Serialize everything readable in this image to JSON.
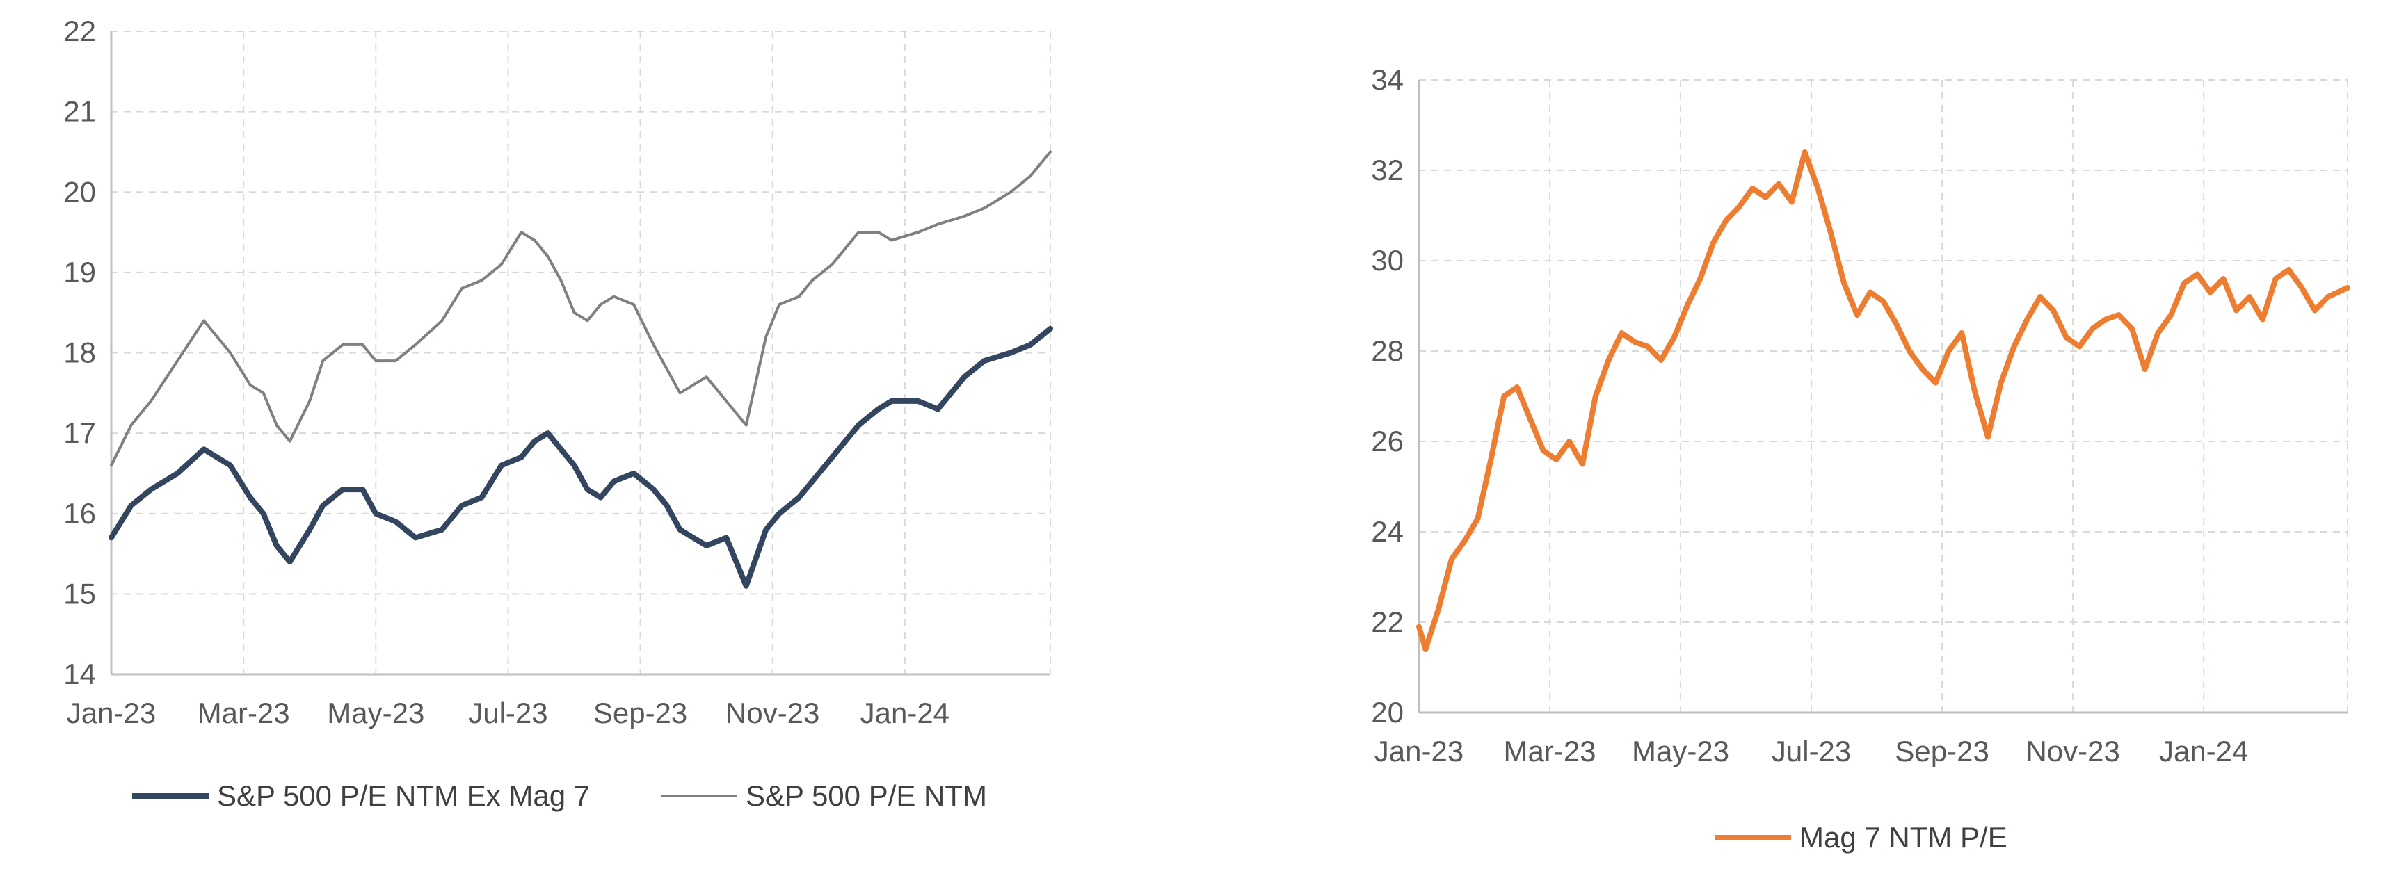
{
  "chart_data": [
    {
      "type": "line",
      "title": "",
      "xlabel": "",
      "ylabel": "",
      "ylim": [
        14,
        22
      ],
      "yticks": [
        "22",
        "21",
        "20",
        "19",
        "18",
        "17",
        "16",
        "15",
        "14"
      ],
      "xticks": [
        "Jan-23",
        "Mar-23",
        "May-23",
        "Jul-23",
        "Sep-23",
        "Nov-23",
        "Jan-24"
      ],
      "x_range_months": [
        0,
        14.2
      ],
      "grid": true,
      "legend_position": "bottom",
      "series": [
        {
          "name": "S&P 500 P/E NTM Ex Mag 7",
          "color": "#34465f",
          "x": [
            0,
            0.3,
            0.6,
            1.0,
            1.4,
            1.8,
            2.1,
            2.3,
            2.5,
            2.7,
            3.0,
            3.2,
            3.5,
            3.8,
            4.0,
            4.3,
            4.6,
            5.0,
            5.3,
            5.6,
            5.9,
            6.2,
            6.4,
            6.6,
            6.8,
            7.0,
            7.2,
            7.4,
            7.6,
            7.9,
            8.2,
            8.4,
            8.6,
            9.0,
            9.3,
            9.6,
            9.9,
            10.1,
            10.4,
            10.6,
            10.9,
            11.3,
            11.6,
            11.8,
            12.2,
            12.5,
            12.9,
            13.2,
            13.6,
            13.9,
            14.2
          ],
          "values": [
            15.7,
            16.1,
            16.3,
            16.5,
            16.8,
            16.6,
            16.2,
            16.0,
            15.6,
            15.4,
            15.8,
            16.1,
            16.3,
            16.3,
            16.0,
            15.9,
            15.7,
            15.8,
            16.1,
            16.2,
            16.6,
            16.7,
            16.9,
            17.0,
            16.8,
            16.6,
            16.3,
            16.2,
            16.4,
            16.5,
            16.3,
            16.1,
            15.8,
            15.6,
            15.7,
            15.1,
            15.8,
            16.0,
            16.2,
            16.4,
            16.7,
            17.1,
            17.3,
            17.4,
            17.4,
            17.3,
            17.7,
            17.9,
            18.0,
            18.1,
            18.3
          ]
        },
        {
          "name": "S&P 500 P/E NTM",
          "color": "#808080",
          "x": [
            0,
            0.3,
            0.6,
            1.0,
            1.4,
            1.8,
            2.1,
            2.3,
            2.5,
            2.7,
            3.0,
            3.2,
            3.5,
            3.8,
            4.0,
            4.3,
            4.6,
            5.0,
            5.3,
            5.6,
            5.9,
            6.2,
            6.4,
            6.6,
            6.8,
            7.0,
            7.2,
            7.4,
            7.6,
            7.9,
            8.2,
            8.4,
            8.6,
            9.0,
            9.3,
            9.6,
            9.9,
            10.1,
            10.4,
            10.6,
            10.9,
            11.3,
            11.6,
            11.8,
            12.2,
            12.5,
            12.9,
            13.2,
            13.6,
            13.9,
            14.2
          ],
          "values": [
            16.6,
            17.1,
            17.4,
            17.9,
            18.4,
            18.0,
            17.6,
            17.5,
            17.1,
            16.9,
            17.4,
            17.9,
            18.1,
            18.1,
            17.9,
            17.9,
            18.1,
            18.4,
            18.8,
            18.9,
            19.1,
            19.5,
            19.4,
            19.2,
            18.9,
            18.5,
            18.4,
            18.6,
            18.7,
            18.6,
            18.1,
            17.8,
            17.5,
            17.7,
            17.4,
            17.1,
            18.2,
            18.6,
            18.7,
            18.9,
            19.1,
            19.5,
            19.5,
            19.4,
            19.5,
            19.6,
            19.7,
            19.8,
            20.0,
            20.2,
            20.5
          ]
        }
      ]
    },
    {
      "type": "line",
      "title": "",
      "xlabel": "",
      "ylabel": "",
      "ylim": [
        20,
        34
      ],
      "yticks": [
        "34",
        "32",
        "30",
        "28",
        "26",
        "24",
        "22",
        "20"
      ],
      "xticks": [
        "Jan-23",
        "Mar-23",
        "May-23",
        "Jul-23",
        "Sep-23",
        "Nov-23",
        "Jan-24"
      ],
      "x_range_months": [
        0,
        14.2
      ],
      "grid": true,
      "legend_position": "bottom",
      "series": [
        {
          "name": "Mag 7 NTM P/E",
          "color": "#ed7d31",
          "x": [
            0,
            0.1,
            0.3,
            0.5,
            0.7,
            0.9,
            1.1,
            1.3,
            1.5,
            1.7,
            1.9,
            2.1,
            2.3,
            2.5,
            2.7,
            2.9,
            3.1,
            3.3,
            3.5,
            3.7,
            3.9,
            4.1,
            4.3,
            4.5,
            4.7,
            4.9,
            5.1,
            5.3,
            5.5,
            5.7,
            5.9,
            6.1,
            6.3,
            6.5,
            6.7,
            6.9,
            7.1,
            7.3,
            7.5,
            7.7,
            7.9,
            8.1,
            8.3,
            8.5,
            8.7,
            8.9,
            9.1,
            9.3,
            9.5,
            9.7,
            9.9,
            10.1,
            10.3,
            10.5,
            10.7,
            10.9,
            11.1,
            11.3,
            11.5,
            11.7,
            11.9,
            12.1,
            12.3,
            12.5,
            12.7,
            12.9,
            13.1,
            13.3,
            13.5,
            13.7,
            13.9,
            14.2
          ],
          "values": [
            21.9,
            21.4,
            22.3,
            23.4,
            23.8,
            24.3,
            25.6,
            27.0,
            27.2,
            26.5,
            25.8,
            25.6,
            26.0,
            25.5,
            27.0,
            27.8,
            28.4,
            28.2,
            28.1,
            27.8,
            28.3,
            29.0,
            29.6,
            30.4,
            30.9,
            31.2,
            31.6,
            31.4,
            31.7,
            31.3,
            32.4,
            31.6,
            30.6,
            29.5,
            28.8,
            29.3,
            29.1,
            28.6,
            28.0,
            27.6,
            27.3,
            28.0,
            28.4,
            27.1,
            26.1,
            27.3,
            28.1,
            28.7,
            29.2,
            28.9,
            28.3,
            28.1,
            28.5,
            28.7,
            28.8,
            28.5,
            27.6,
            28.4,
            28.8,
            29.5,
            29.7,
            29.3,
            29.6,
            28.9,
            29.2,
            28.7,
            29.6,
            29.8,
            29.4,
            28.9,
            29.2,
            29.4
          ]
        }
      ]
    }
  ]
}
